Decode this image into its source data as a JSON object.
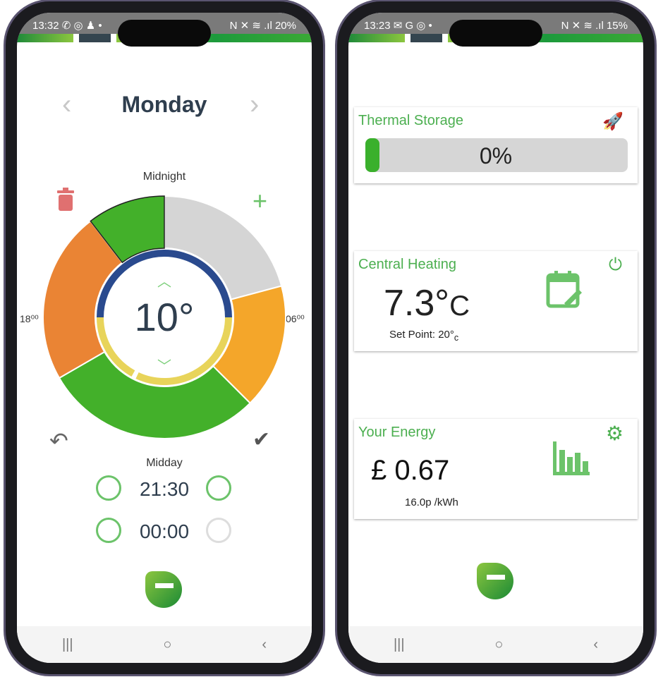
{
  "left_phone": {
    "status": {
      "time": "13:32",
      "icons": "✆ ◎ ♟ •",
      "right": "N ✕ ≋ .ıl 20%"
    },
    "day": "Monday",
    "labels": {
      "top": "Midnight",
      "bottom": "Midday",
      "left": "18⁰⁰",
      "right": "06⁰⁰"
    },
    "temperature": "10°",
    "times": [
      "21:30",
      "00:00"
    ],
    "colors": {
      "grey": "#d5d5d5",
      "light_orange": "#f4a62a",
      "green": "#43b02a",
      "dark_orange": "#ea8434",
      "blue": "#2a4a8e",
      "yellow": "#e8d45a"
    }
  },
  "chart_data": {
    "type": "pie",
    "segments": [
      {
        "start_hour": 0,
        "end_hour": 5,
        "color": "#d5d5d5"
      },
      {
        "start_hour": 5,
        "end_hour": 9,
        "color": "#f4a62a"
      },
      {
        "start_hour": 9,
        "end_hour": 16,
        "color": "#43b02a"
      },
      {
        "start_hour": 16,
        "end_hour": 21.5,
        "color": "#ea8434"
      },
      {
        "start_hour": 21.5,
        "end_hour": 24,
        "color": "#43b02a",
        "selected": true
      }
    ]
  },
  "right_phone": {
    "status": {
      "time": "13:23",
      "icons": "✉ G ◎ •",
      "right": "N ✕ ≋ .ıl 15%"
    },
    "thermal": {
      "title": "Thermal Storage",
      "value": "0%",
      "percent": 0
    },
    "heating": {
      "title": "Central Heating",
      "temp": "7.3°",
      "unit": "C",
      "setpoint": "Set Point: 20°",
      "setpoint_unit": "c"
    },
    "energy": {
      "title": "Your Energy",
      "cost": "£ 0.67",
      "rate": "16.0p /kWh"
    }
  },
  "nav": {
    "recent": "|||",
    "home": "○",
    "back": "‹"
  }
}
